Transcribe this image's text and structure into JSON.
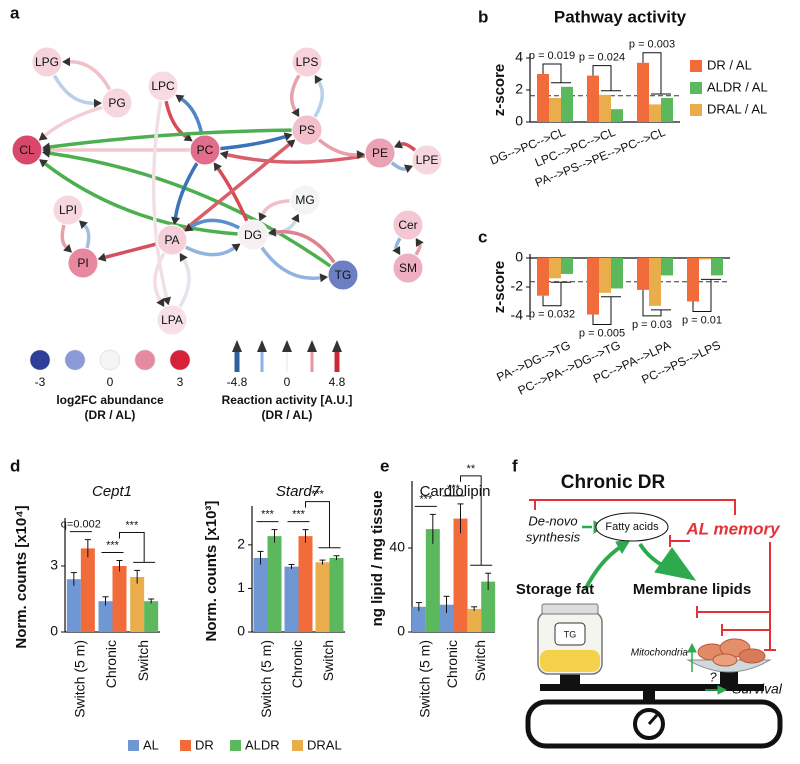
{
  "panel_labels": [
    "a",
    "b",
    "c",
    "d",
    "e",
    "f"
  ],
  "network": {
    "nodes": [
      {
        "label": "LPG",
        "color": "#f6d3db"
      },
      {
        "label": "PG",
        "color": "#f6d7de"
      },
      {
        "label": "LPC",
        "color": "#f8dbe2"
      },
      {
        "label": "LPS",
        "color": "#f6d3db"
      },
      {
        "label": "PS",
        "color": "#f2bfcb"
      },
      {
        "label": "PE",
        "color": "#eaa3b4"
      },
      {
        "label": "LPE",
        "color": "#f6d7de"
      },
      {
        "label": "CL",
        "color": "#d9486c"
      },
      {
        "label": "PC",
        "color": "#e06d89"
      },
      {
        "label": "MG",
        "color": "#f4f4f4"
      },
      {
        "label": "LPI",
        "color": "#f6d7de"
      },
      {
        "label": "DG",
        "color": "#f6f0f2"
      },
      {
        "label": "PA",
        "color": "#f5d0da"
      },
      {
        "label": "PI",
        "color": "#e8889f"
      },
      {
        "label": "Cer",
        "color": "#f3c8d2"
      },
      {
        "label": "SM",
        "color": "#eeb0c0"
      },
      {
        "label": "TG",
        "color": "#6c7fc2"
      },
      {
        "label": "LPA",
        "color": "#f7e0e6"
      }
    ],
    "edges": [
      {
        "from": 1,
        "to": 0,
        "color": "#f0c0c8"
      },
      {
        "from": 0,
        "to": 1,
        "color": "#b8d0ea"
      },
      {
        "from": 1,
        "to": 7,
        "color": "#f3cfd5"
      },
      {
        "from": 2,
        "to": 8,
        "color": "#d94a55"
      },
      {
        "from": 8,
        "to": 2,
        "color": "#4f86c6"
      },
      {
        "from": 8,
        "to": 7,
        "color": "#f2c6cd"
      },
      {
        "from": 4,
        "to": 7,
        "color": "#4caf50"
      },
      {
        "from": 11,
        "to": 7,
        "color": "#4caf50"
      },
      {
        "from": 16,
        "to": 7,
        "color": "#4caf50"
      },
      {
        "from": 8,
        "to": 4,
        "color": "#3a73b8"
      },
      {
        "from": 5,
        "to": 8,
        "color": "#d9606a"
      },
      {
        "from": 4,
        "to": 5,
        "color": "#e8a0aa"
      },
      {
        "from": 5,
        "to": 6,
        "color": "#8fb4e0"
      },
      {
        "from": 6,
        "to": 5,
        "color": "#d4505e"
      },
      {
        "from": 4,
        "to": 3,
        "color": "#b8d0ea"
      },
      {
        "from": 3,
        "to": 4,
        "color": "#e8a0aa"
      },
      {
        "from": 8,
        "to": 12,
        "color": "#3a73b8"
      },
      {
        "from": 11,
        "to": 8,
        "color": "#d94a55"
      },
      {
        "from": 12,
        "to": 4,
        "color": "#d9606a"
      },
      {
        "from": 12,
        "to": 13,
        "color": "#d4505e"
      },
      {
        "from": 10,
        "to": 13,
        "color": "#e8a0aa"
      },
      {
        "from": 13,
        "to": 10,
        "color": "#9fbfe3"
      },
      {
        "from": 12,
        "to": 11,
        "color": "#8fb4e0"
      },
      {
        "from": 11,
        "to": 12,
        "color": "#5b8fd0"
      },
      {
        "from": 11,
        "to": 9,
        "color": "#c8d8ee"
      },
      {
        "from": 9,
        "to": 11,
        "color": "#f0c0c8"
      },
      {
        "from": 11,
        "to": 16,
        "color": "#8fb4e0"
      },
      {
        "from": 16,
        "to": 11,
        "color": "#e08090"
      },
      {
        "from": 14,
        "to": 15,
        "color": "#8fb4e0"
      },
      {
        "from": 15,
        "to": 14,
        "color": "#e8a0aa"
      },
      {
        "from": 12,
        "to": 17,
        "color": "#f3dde2"
      },
      {
        "from": 17,
        "to": 12,
        "color": "#e4e4ec"
      },
      {
        "from": 2,
        "to": 17,
        "color": "#f0e0e4"
      }
    ]
  },
  "abundance_legend": {
    "colors": [
      "#2d3f99",
      "#8a9bd8",
      "#f5f5f5",
      "#e68aa0",
      "#d6213a"
    ],
    "ticks": [
      -3,
      0,
      3
    ],
    "title": "log2FC abundance",
    "subtitle": "(DR / AL)"
  },
  "activity_legend": {
    "colors": [
      "#2f5f9e",
      "#8db3e0",
      "#eeeeee",
      "#e8949c",
      "#c8283a"
    ],
    "ticks": [
      -4.8,
      0,
      4.8
    ],
    "title": "Reaction activity [A.U.]",
    "subtitle": "(DR / AL)"
  },
  "chart_data": [
    {
      "type": "bar",
      "title": "Pathway activity",
      "ylabel": "z-score",
      "categories": [
        "DG-->PC-->CL",
        "LPC-->PC-->CL",
        "PA-->PS-->PE-->PC-->CL"
      ],
      "series": [
        {
          "name": "DR / AL",
          "color": "#f26b3a",
          "values": [
            3.0,
            2.9,
            3.7
          ]
        },
        {
          "name": "ALDR / AL",
          "color": "#5cb85c",
          "values": [
            2.2,
            0.8,
            1.5
          ]
        },
        {
          "name": "DRAL / AL",
          "color": "#e9ad4c",
          "values": [
            1.5,
            1.7,
            1.1
          ]
        }
      ],
      "ylim": [
        0,
        4
      ],
      "yticks": [
        0,
        2,
        4
      ],
      "threshold": 1.64,
      "annotations": [
        "p = 0.019",
        "p = 0.024",
        "p = 0.003"
      ]
    },
    {
      "type": "bar",
      "ylabel": "z-score",
      "categories": [
        "PA-->DG-->TG",
        "PC-->PA-->DG-->TG",
        "PC-->PA-->LPA",
        "PC-->PS-->LPS"
      ],
      "series": [
        {
          "color": "#f26b3a",
          "values": [
            -2.6,
            -3.9,
            -2.2,
            -3.0
          ]
        },
        {
          "color": "#5cb85c",
          "values": [
            -1.1,
            -2.1,
            -1.2,
            -1.2
          ]
        },
        {
          "color": "#e9ad4c",
          "values": [
            -1.4,
            -2.4,
            -3.3,
            -0.1
          ]
        }
      ],
      "ylim": [
        -4,
        0
      ],
      "yticks": [
        -4,
        -2,
        0
      ],
      "threshold": -1.64,
      "annotations": [
        "p = 0.032",
        "p = 0.005",
        "p = 0.03",
        "p = 0.01"
      ]
    },
    {
      "type": "bar",
      "title": "Cept1",
      "title_italic": true,
      "ylabel": "Norm. counts [x10⁴]",
      "categories": [
        "Switch (5 m)",
        "Chronic",
        "Switch"
      ],
      "series": [
        {
          "name": "AL",
          "color": "#6f97d4",
          "values": [
            2.4,
            1.4,
            null
          ],
          "errors": [
            0.3,
            0.2,
            null
          ]
        },
        {
          "name": "DR",
          "color": "#f26b3a",
          "values": [
            3.8,
            3.0,
            null
          ],
          "errors": [
            0.4,
            0.25,
            null
          ]
        },
        {
          "name": "ALDR",
          "color": "#5cb85c",
          "values": [
            null,
            null,
            1.4
          ],
          "errors": [
            null,
            null,
            0.1
          ]
        },
        {
          "name": "DRAL",
          "color": "#e9ad4c",
          "values": [
            null,
            null,
            2.5
          ],
          "errors": [
            null,
            null,
            0.3
          ]
        }
      ],
      "ylim": [
        0,
        5
      ],
      "yticks": [
        0,
        3
      ],
      "annotations": [
        "q=0.002",
        "***",
        "***"
      ]
    },
    {
      "type": "bar",
      "title": "Stard7",
      "title_italic": true,
      "ylabel": "Norm. counts [x10³]",
      "categories": [
        "Switch (5 m)",
        "Chronic",
        "Switch"
      ],
      "series": [
        {
          "color": "#6f97d4",
          "values": [
            1.7,
            1.5,
            null
          ],
          "errors": [
            0.15,
            0.05,
            null
          ]
        },
        {
          "color": "#f26b3a",
          "values": [
            null,
            2.2,
            null
          ],
          "errors": [
            null,
            0.15,
            null
          ]
        },
        {
          "color": "#5cb85c",
          "values": [
            2.2,
            null,
            1.7
          ],
          "errors": [
            0.15,
            null,
            0.05
          ]
        },
        {
          "color": "#e9ad4c",
          "values": [
            null,
            null,
            1.6
          ],
          "errors": [
            null,
            null,
            0.05
          ]
        }
      ],
      "ylim": [
        0,
        2.8
      ],
      "yticks": [
        0,
        1,
        2
      ],
      "annotations": [
        "***",
        "***",
        "***"
      ]
    },
    {
      "type": "bar",
      "title": "Cardiolipin",
      "title_italic": false,
      "ylabel": "ng lipid / mg tissue",
      "categories": [
        "Switch (5 m)",
        "Chronic",
        "Switch"
      ],
      "series": [
        {
          "color": "#6f97d4",
          "values": [
            12,
            13,
            null
          ],
          "errors": [
            2,
            4,
            null
          ]
        },
        {
          "color": "#f26b3a",
          "values": [
            null,
            54,
            null
          ],
          "errors": [
            null,
            7,
            null
          ]
        },
        {
          "color": "#5cb85c",
          "values": [
            49,
            null,
            24
          ],
          "errors": [
            7,
            null,
            4
          ]
        },
        {
          "color": "#e9ad4c",
          "values": [
            null,
            null,
            11
          ],
          "errors": [
            null,
            null,
            1
          ]
        }
      ],
      "ylim": [
        0,
        70
      ],
      "yticks": [
        0,
        40
      ],
      "annotations": [
        "***",
        "***",
        "**"
      ]
    }
  ],
  "schematic": {
    "title": "Chronic DR",
    "de_novo": [
      "De-novo",
      "synthesis"
    ],
    "fatty_acids": "Fatty acids",
    "memory": "AL memory",
    "storage": "Storage fat",
    "membrane": "Membrane lipids",
    "jar_label": "TG",
    "mitochondria": "Mitochondria",
    "question": "?",
    "survival": "Survival"
  }
}
